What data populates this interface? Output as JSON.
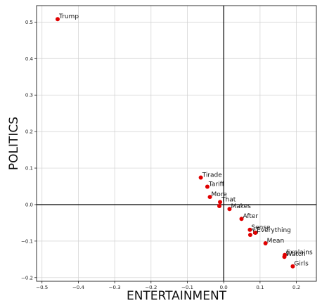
{
  "chart_data": {
    "type": "scatter",
    "title": "",
    "xlabel": "ENTERTAINMENT",
    "ylabel": "POLITICS",
    "xlim": [
      -0.515,
      0.255
    ],
    "ylim": [
      -0.21,
      0.545
    ],
    "grid": true,
    "xticks": [
      -0.5,
      -0.4,
      -0.3,
      -0.2,
      -0.1,
      0.0,
      0.1,
      0.2
    ],
    "xtick_labels": [
      "−0.5",
      "−0.4",
      "−0.3",
      "−0.2",
      "−0.1",
      "0.0",
      "0.1",
      "0.2"
    ],
    "yticks": [
      -0.2,
      -0.1,
      0.0,
      0.1,
      0.2,
      0.3,
      0.4,
      0.5
    ],
    "ytick_labels": [
      "−0.2",
      "−0.1",
      "0.0",
      "0.1",
      "0.2",
      "0.3",
      "0.4",
      "0.5"
    ],
    "point_color": "#e00000",
    "points": [
      {
        "label": "Trump",
        "x": -0.457,
        "y": 0.508
      },
      {
        "label": "Tirade",
        "x": -0.063,
        "y": 0.074
      },
      {
        "label": "Tariff",
        "x": -0.045,
        "y": 0.049
      },
      {
        "label": "More",
        "x": -0.038,
        "y": 0.021
      },
      {
        "label": "That",
        "x": -0.01,
        "y": 0.007
      },
      {
        "label": "",
        "x": -0.012,
        "y": -0.004
      },
      {
        "label": "Makes",
        "x": 0.016,
        "y": -0.012
      },
      {
        "label": "After",
        "x": 0.049,
        "y": -0.039
      },
      {
        "label": "Sense",
        "x": 0.072,
        "y": -0.069
      },
      {
        "label": "To",
        "x": 0.073,
        "y": -0.083
      },
      {
        "label": "Everything",
        "x": 0.087,
        "y": -0.077
      },
      {
        "label": "Mean",
        "x": 0.115,
        "y": -0.106
      },
      {
        "label": "Explains",
        "x": 0.168,
        "y": -0.138
      },
      {
        "label": "Watch",
        "x": 0.167,
        "y": -0.143
      },
      {
        "label": "Girls",
        "x": 0.19,
        "y": -0.169
      }
    ]
  }
}
